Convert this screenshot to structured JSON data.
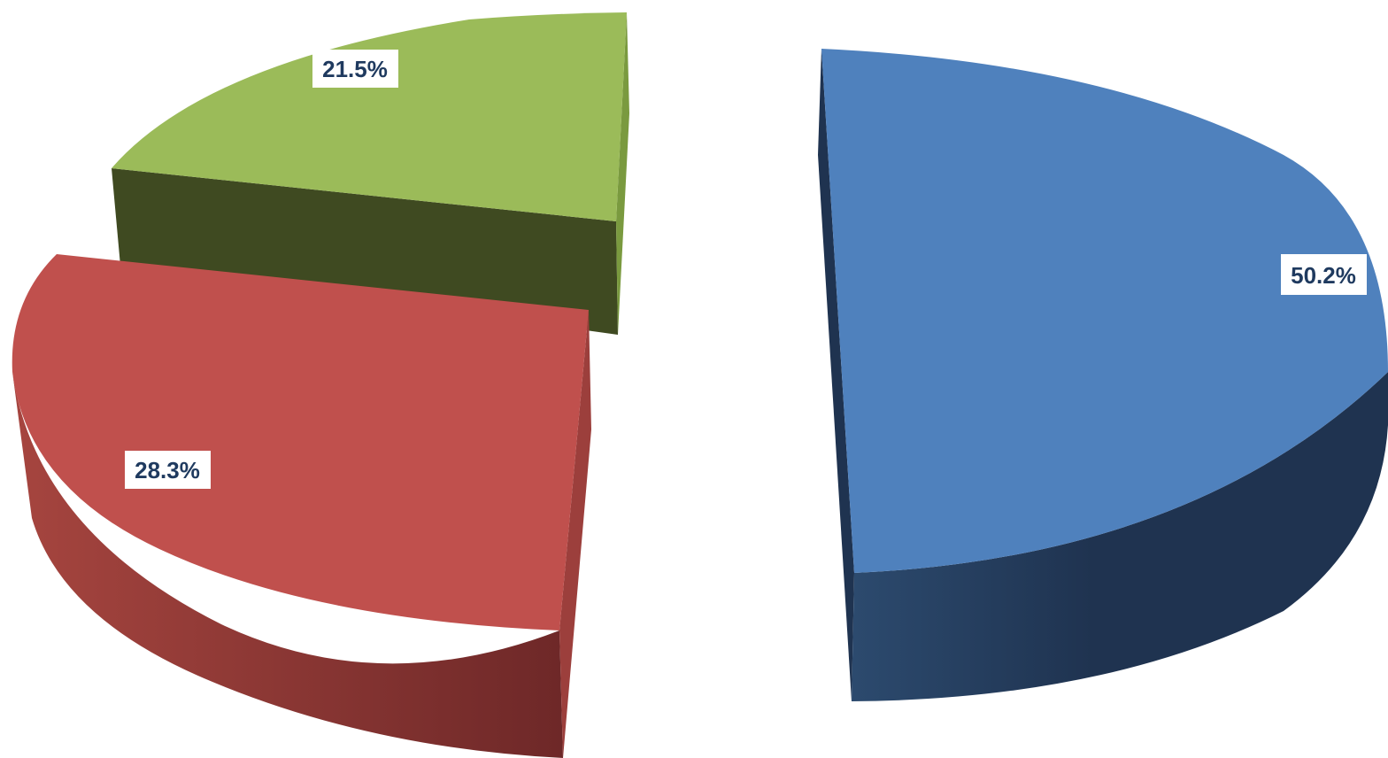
{
  "chart_data": {
    "type": "pie",
    "title": "",
    "slices": [
      {
        "value": 50.2,
        "label": "50.2%",
        "color": "#4F81BD",
        "side_color": "#1F3350"
      },
      {
        "value": 28.3,
        "label": "28.3%",
        "color": "#C0504D",
        "side_color": "#7A2A2A"
      },
      {
        "value": 21.5,
        "label": "21.5%",
        "color": "#9BBB59",
        "side_color": "#3F4A21"
      }
    ],
    "style": "3d-exploded",
    "label_text_color": "#1F3A5F"
  }
}
